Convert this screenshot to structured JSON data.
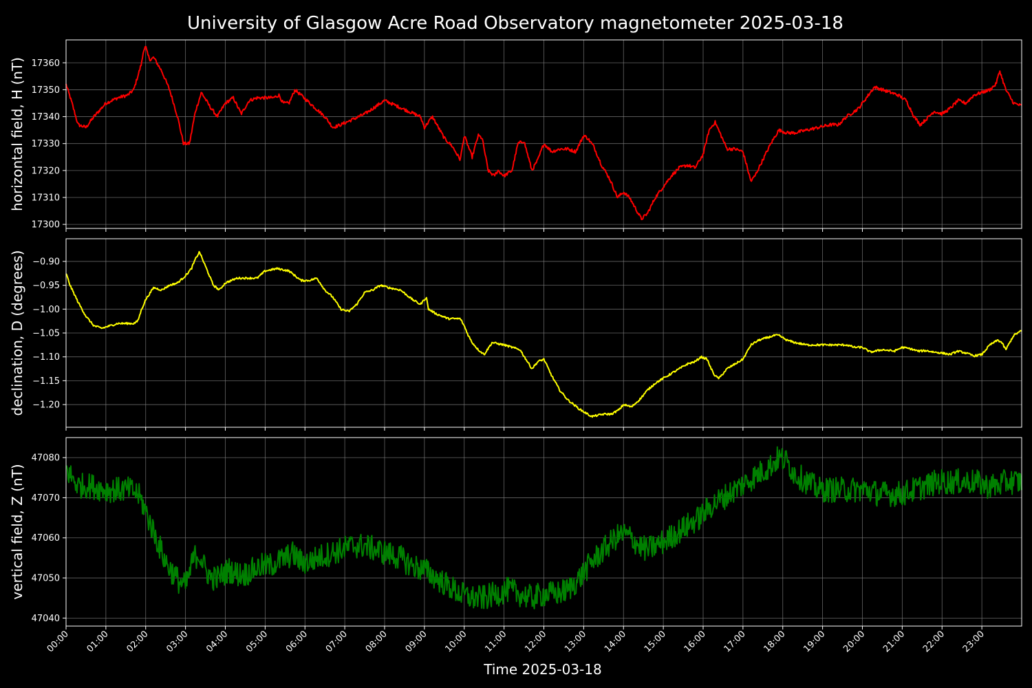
{
  "figure": {
    "title": "University of Glasgow Acre Road Observatory magnetometer 2025-03-18",
    "xlabel": "Time 2025-03-18",
    "background": "#000000",
    "grid_color": "#808080"
  },
  "chart_data": [
    {
      "type": "line",
      "ylabel": "horizontal field, H (nT)",
      "color": "#ff0000",
      "grid": true,
      "xlim_hours": [
        0,
        24
      ],
      "ylim": [
        17298.5,
        17368.5
      ],
      "yticks": [
        17300,
        17310,
        17320,
        17330,
        17340,
        17350,
        17360
      ],
      "ytick_labels": [
        "17300",
        "17310",
        "17320",
        "17330",
        "17340",
        "17350",
        "17360"
      ],
      "noise": 0.6,
      "x_hours": [
        0,
        0.15,
        0.3,
        0.5,
        0.7,
        1.0,
        1.3,
        1.55,
        1.7,
        1.8,
        1.9,
        1.95,
        2.0,
        2.05,
        2.12,
        2.2,
        2.4,
        2.6,
        2.8,
        2.95,
        3.1,
        3.25,
        3.4,
        3.6,
        3.8,
        4.0,
        4.2,
        4.4,
        4.6,
        4.8,
        5.0,
        5.2,
        5.35,
        5.45,
        5.6,
        5.75,
        5.9,
        6.2,
        6.5,
        6.7,
        6.9,
        7.2,
        7.5,
        7.8,
        8.0,
        8.3,
        8.6,
        8.9,
        9.0,
        9.2,
        9.5,
        9.7,
        9.9,
        10.0,
        10.1,
        10.2,
        10.35,
        10.45,
        10.6,
        10.75,
        10.85,
        11.0,
        11.2,
        11.35,
        11.5,
        11.7,
        11.85,
        12.0,
        12.2,
        12.4,
        12.6,
        12.8,
        13.0,
        13.1,
        13.25,
        13.45,
        13.65,
        13.85,
        14.0,
        14.15,
        14.3,
        14.45,
        14.6,
        14.8,
        15.0,
        15.2,
        15.4,
        15.6,
        15.8,
        16.0,
        16.15,
        16.3,
        16.45,
        16.6,
        16.8,
        17.0,
        17.2,
        17.3,
        17.5,
        17.7,
        17.9,
        18.1,
        18.3,
        18.6,
        18.9,
        19.2,
        19.4,
        19.6,
        19.9,
        20.1,
        20.3,
        20.5,
        20.7,
        20.9,
        21.1,
        21.3,
        21.45,
        21.6,
        21.8,
        22.0,
        22.2,
        22.4,
        22.6,
        22.8,
        23.0,
        23.2,
        23.35,
        23.45,
        23.6,
        23.8,
        24.0
      ],
      "values": [
        17352,
        17345,
        17337,
        17336,
        17340,
        17345,
        17347,
        17348,
        17350,
        17355,
        17360,
        17365,
        17366,
        17363,
        17361,
        17362,
        17357,
        17350,
        17340,
        17330,
        17330,
        17342,
        17349,
        17344,
        17340,
        17345,
        17347,
        17341,
        17346,
        17347,
        17347,
        17347,
        17348,
        17345,
        17345,
        17350,
        17348,
        17344,
        17340,
        17336,
        17337,
        17339,
        17341,
        17344,
        17346,
        17344,
        17342,
        17340,
        17336,
        17340,
        17332,
        17329,
        17324,
        17333,
        17329,
        17325,
        17333,
        17332,
        17320,
        17318,
        17320,
        17318,
        17320,
        17330,
        17331,
        17320,
        17324,
        17330,
        17327,
        17328,
        17328,
        17327,
        17333,
        17332,
        17329,
        17322,
        17317,
        17310,
        17312,
        17310,
        17306,
        17302,
        17304,
        17310,
        17314,
        17318,
        17321,
        17322,
        17321,
        17326,
        17335,
        17338,
        17333,
        17328,
        17328,
        17327,
        17316,
        17318,
        17324,
        17330,
        17335,
        17334,
        17334,
        17335,
        17336,
        17337,
        17337,
        17340,
        17343,
        17347,
        17351,
        17350,
        17349,
        17348,
        17346,
        17340,
        17337,
        17339,
        17342,
        17341,
        17343,
        17346,
        17345,
        17348,
        17349,
        17350,
        17352,
        17357,
        17350,
        17345,
        17344
      ]
    },
    {
      "type": "line",
      "ylabel": "declination, D (degrees)",
      "color": "#ffff00",
      "grid": true,
      "xlim_hours": [
        0,
        24
      ],
      "ylim": [
        -1.2475,
        -0.8525
      ],
      "yticks": [
        -1.2,
        -1.15,
        -1.1,
        -1.05,
        -1.0,
        -0.95,
        -0.9
      ],
      "ytick_labels": [
        "−1.20",
        "−1.15",
        "−1.10",
        "−1.05",
        "−1.00",
        "−0.95",
        "−0.90"
      ],
      "noise": 0.002,
      "x_hours": [
        0,
        0.1,
        0.3,
        0.5,
        0.7,
        0.9,
        1.1,
        1.3,
        1.5,
        1.7,
        1.8,
        1.9,
        2.0,
        2.2,
        2.4,
        2.6,
        2.8,
        3.0,
        3.15,
        3.25,
        3.35,
        3.5,
        3.7,
        3.85,
        4.0,
        4.3,
        4.6,
        4.8,
        5.0,
        5.3,
        5.6,
        5.75,
        5.9,
        6.1,
        6.3,
        6.5,
        6.7,
        6.9,
        7.1,
        7.3,
        7.5,
        7.7,
        7.9,
        8.1,
        8.4,
        8.7,
        8.9,
        9.05,
        9.1,
        9.3,
        9.6,
        9.9,
        10.0,
        10.1,
        10.2,
        10.35,
        10.5,
        10.7,
        11.0,
        11.2,
        11.4,
        11.55,
        11.7,
        11.85,
        12.0,
        12.2,
        12.4,
        12.6,
        12.9,
        13.2,
        13.5,
        13.7,
        13.9,
        14.0,
        14.2,
        14.4,
        14.6,
        14.8,
        15.0,
        15.2,
        15.4,
        15.6,
        15.8,
        15.95,
        16.1,
        16.2,
        16.3,
        16.4,
        16.6,
        16.8,
        17.0,
        17.2,
        17.4,
        17.6,
        17.8,
        17.9,
        18.1,
        18.3,
        18.6,
        18.9,
        19.2,
        19.4,
        19.6,
        19.8,
        20.0,
        20.2,
        20.5,
        20.8,
        21.0,
        21.2,
        21.4,
        21.6,
        21.8,
        22.0,
        22.2,
        22.4,
        22.6,
        22.8,
        23.0,
        23.2,
        23.4,
        23.5,
        23.6,
        23.7,
        23.8,
        24.0
      ],
      "values": [
        -0.925,
        -0.95,
        -0.985,
        -1.015,
        -1.035,
        -1.04,
        -1.035,
        -1.03,
        -1.03,
        -1.03,
        -1.025,
        -1.0,
        -0.98,
        -0.955,
        -0.96,
        -0.95,
        -0.945,
        -0.93,
        -0.915,
        -0.895,
        -0.88,
        -0.91,
        -0.95,
        -0.96,
        -0.945,
        -0.935,
        -0.935,
        -0.935,
        -0.92,
        -0.915,
        -0.92,
        -0.93,
        -0.94,
        -0.94,
        -0.935,
        -0.96,
        -0.975,
        -1.0,
        -1.005,
        -0.99,
        -0.965,
        -0.96,
        -0.95,
        -0.955,
        -0.96,
        -0.98,
        -0.99,
        -0.975,
        -1.0,
        -1.01,
        -1.02,
        -1.02,
        -1.035,
        -1.055,
        -1.07,
        -1.085,
        -1.095,
        -1.07,
        -1.075,
        -1.08,
        -1.085,
        -1.105,
        -1.125,
        -1.11,
        -1.105,
        -1.14,
        -1.17,
        -1.19,
        -1.21,
        -1.225,
        -1.22,
        -1.22,
        -1.21,
        -1.2,
        -1.205,
        -1.19,
        -1.17,
        -1.155,
        -1.145,
        -1.135,
        -1.125,
        -1.115,
        -1.11,
        -1.1,
        -1.105,
        -1.125,
        -1.14,
        -1.145,
        -1.125,
        -1.115,
        -1.105,
        -1.075,
        -1.065,
        -1.06,
        -1.055,
        -1.055,
        -1.065,
        -1.07,
        -1.075,
        -1.075,
        -1.075,
        -1.075,
        -1.075,
        -1.08,
        -1.08,
        -1.09,
        -1.085,
        -1.088,
        -1.08,
        -1.083,
        -1.088,
        -1.087,
        -1.09,
        -1.092,
        -1.095,
        -1.088,
        -1.092,
        -1.098,
        -1.095,
        -1.075,
        -1.065,
        -1.07,
        -1.085,
        -1.07,
        -1.055,
        -1.045
      ]
    },
    {
      "type": "line",
      "ylabel": "vertical field, Z (nT)",
      "color": "#008000",
      "grid": true,
      "xlim_hours": [
        0,
        24
      ],
      "ylim": [
        47038.0,
        47085.0
      ],
      "yticks": [
        47040,
        47050,
        47060,
        47070,
        47080
      ],
      "ytick_labels": [
        "47040",
        "47050",
        "47060",
        "47070",
        "47080"
      ],
      "noise": 3.2,
      "x_hours": [
        0,
        0.15,
        0.3,
        0.6,
        1.0,
        1.3,
        1.6,
        1.8,
        1.95,
        2.1,
        2.3,
        2.5,
        2.7,
        2.85,
        3.0,
        3.1,
        3.2,
        3.35,
        3.5,
        3.65,
        3.8,
        3.95,
        4.1,
        4.3,
        4.5,
        4.7,
        4.9,
        5.1,
        5.3,
        5.5,
        5.7,
        5.9,
        6.1,
        6.3,
        6.6,
        6.9,
        7.2,
        7.5,
        7.8,
        8.1,
        8.4,
        8.7,
        9.0,
        9.3,
        9.6,
        9.9,
        10.2,
        10.5,
        10.8,
        11.1,
        11.4,
        11.7,
        12.0,
        12.3,
        12.6,
        12.9,
        13.2,
        13.5,
        13.8,
        14.0,
        14.2,
        14.4,
        14.6,
        14.8,
        15.0,
        15.3,
        15.6,
        15.9,
        16.2,
        16.5,
        16.8,
        17.1,
        17.4,
        17.7,
        17.9,
        18.1,
        18.3,
        18.6,
        18.9,
        19.2,
        19.5,
        19.8,
        20.1,
        20.4,
        20.7,
        21.0,
        21.3,
        21.6,
        21.9,
        22.2,
        22.5,
        22.8,
        23.1,
        23.4,
        23.6,
        23.8,
        24.0
      ],
      "values": [
        47077,
        47075,
        47073,
        47073,
        47072,
        47072,
        47072,
        47071,
        47068,
        47064,
        47059,
        47054,
        47051,
        47049,
        47048,
        47051,
        47055,
        47056,
        47052,
        47050,
        47050,
        47051,
        47052,
        47051,
        47051,
        47052,
        47053,
        47053,
        47054,
        47055,
        47056,
        47054,
        47054,
        47055,
        47056,
        47057,
        47058,
        47058,
        47057,
        47056,
        47055,
        47053,
        47052,
        47050,
        47048,
        47046,
        47045,
        47045,
        47046,
        47047,
        47046,
        47045,
        47046,
        47046,
        47047,
        47050,
        47054,
        47057,
        47060,
        47061,
        47060,
        47058,
        47057,
        47058,
        47059,
        47061,
        47063,
        47065,
        47068,
        47070,
        47072,
        47074,
        47076,
        47078,
        47080,
        47079,
        47076,
        47074,
        47072,
        47072,
        47072,
        47072,
        47072,
        47071,
        47071,
        47071,
        47072,
        47073,
        47074,
        47074,
        47074,
        47074,
        47073,
        47073,
        47074,
        47074,
        47074
      ]
    }
  ],
  "x_axis": {
    "tick_labels": [
      "00:00",
      "01:00",
      "02:00",
      "03:00",
      "04:00",
      "05:00",
      "06:00",
      "07:00",
      "08:00",
      "09:00",
      "10:00",
      "11:00",
      "12:00",
      "13:00",
      "14:00",
      "15:00",
      "16:00",
      "17:00",
      "18:00",
      "19:00",
      "20:00",
      "21:00",
      "22:00",
      "23:00"
    ]
  }
}
